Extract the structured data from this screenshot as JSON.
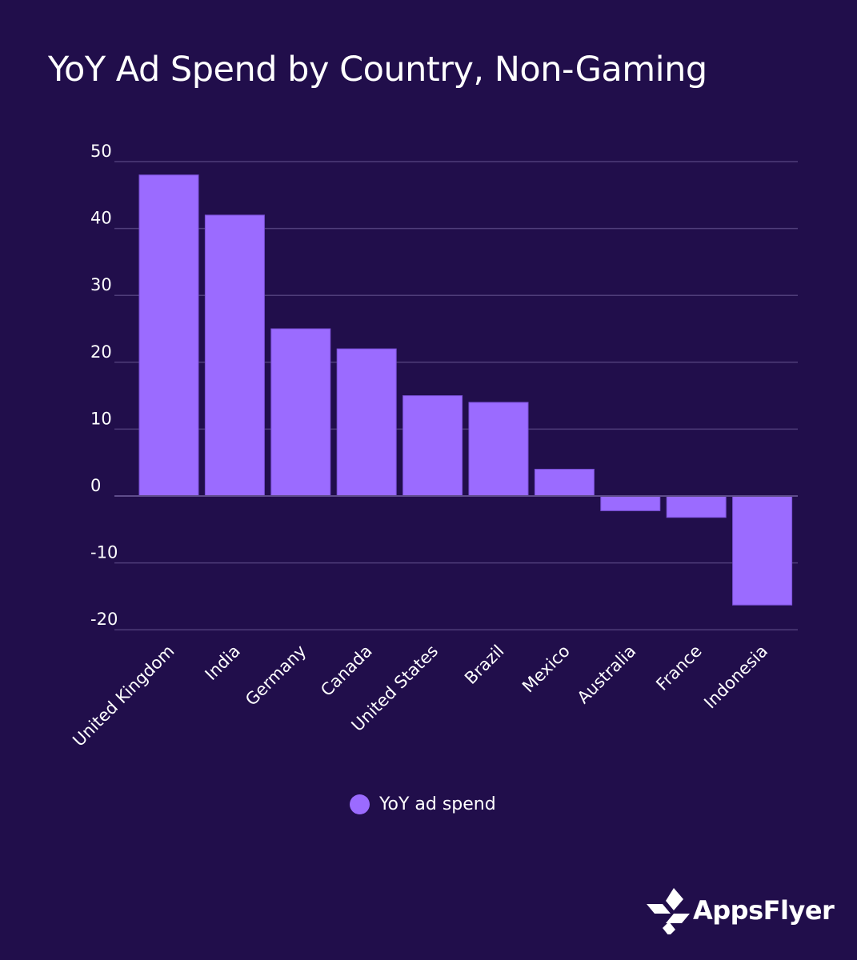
{
  "chart_data": {
    "type": "bar",
    "title": "YoY Ad Spend by Country, Non-Gaming",
    "categories": [
      "United Kingdom",
      "India",
      "Germany",
      "Canada",
      "United States",
      "Brazil",
      "Mexico",
      "Australia",
      "France",
      "Indonesia"
    ],
    "series": [
      {
        "name": "YoY ad spend",
        "values": [
          48,
          42,
          25,
          22,
          15,
          14,
          4,
          -2.2,
          -3.2,
          -16.3
        ],
        "color": "#9b6bff"
      }
    ],
    "xlabel": "",
    "ylabel": "",
    "ylim": [
      -20,
      50
    ],
    "yticks": [
      50,
      40,
      30,
      20,
      10,
      0,
      -10,
      -20
    ],
    "grid": true,
    "legend_position": "bottom-center",
    "background": "#210e4b"
  },
  "logo": {
    "text": "AppsFlyer"
  }
}
